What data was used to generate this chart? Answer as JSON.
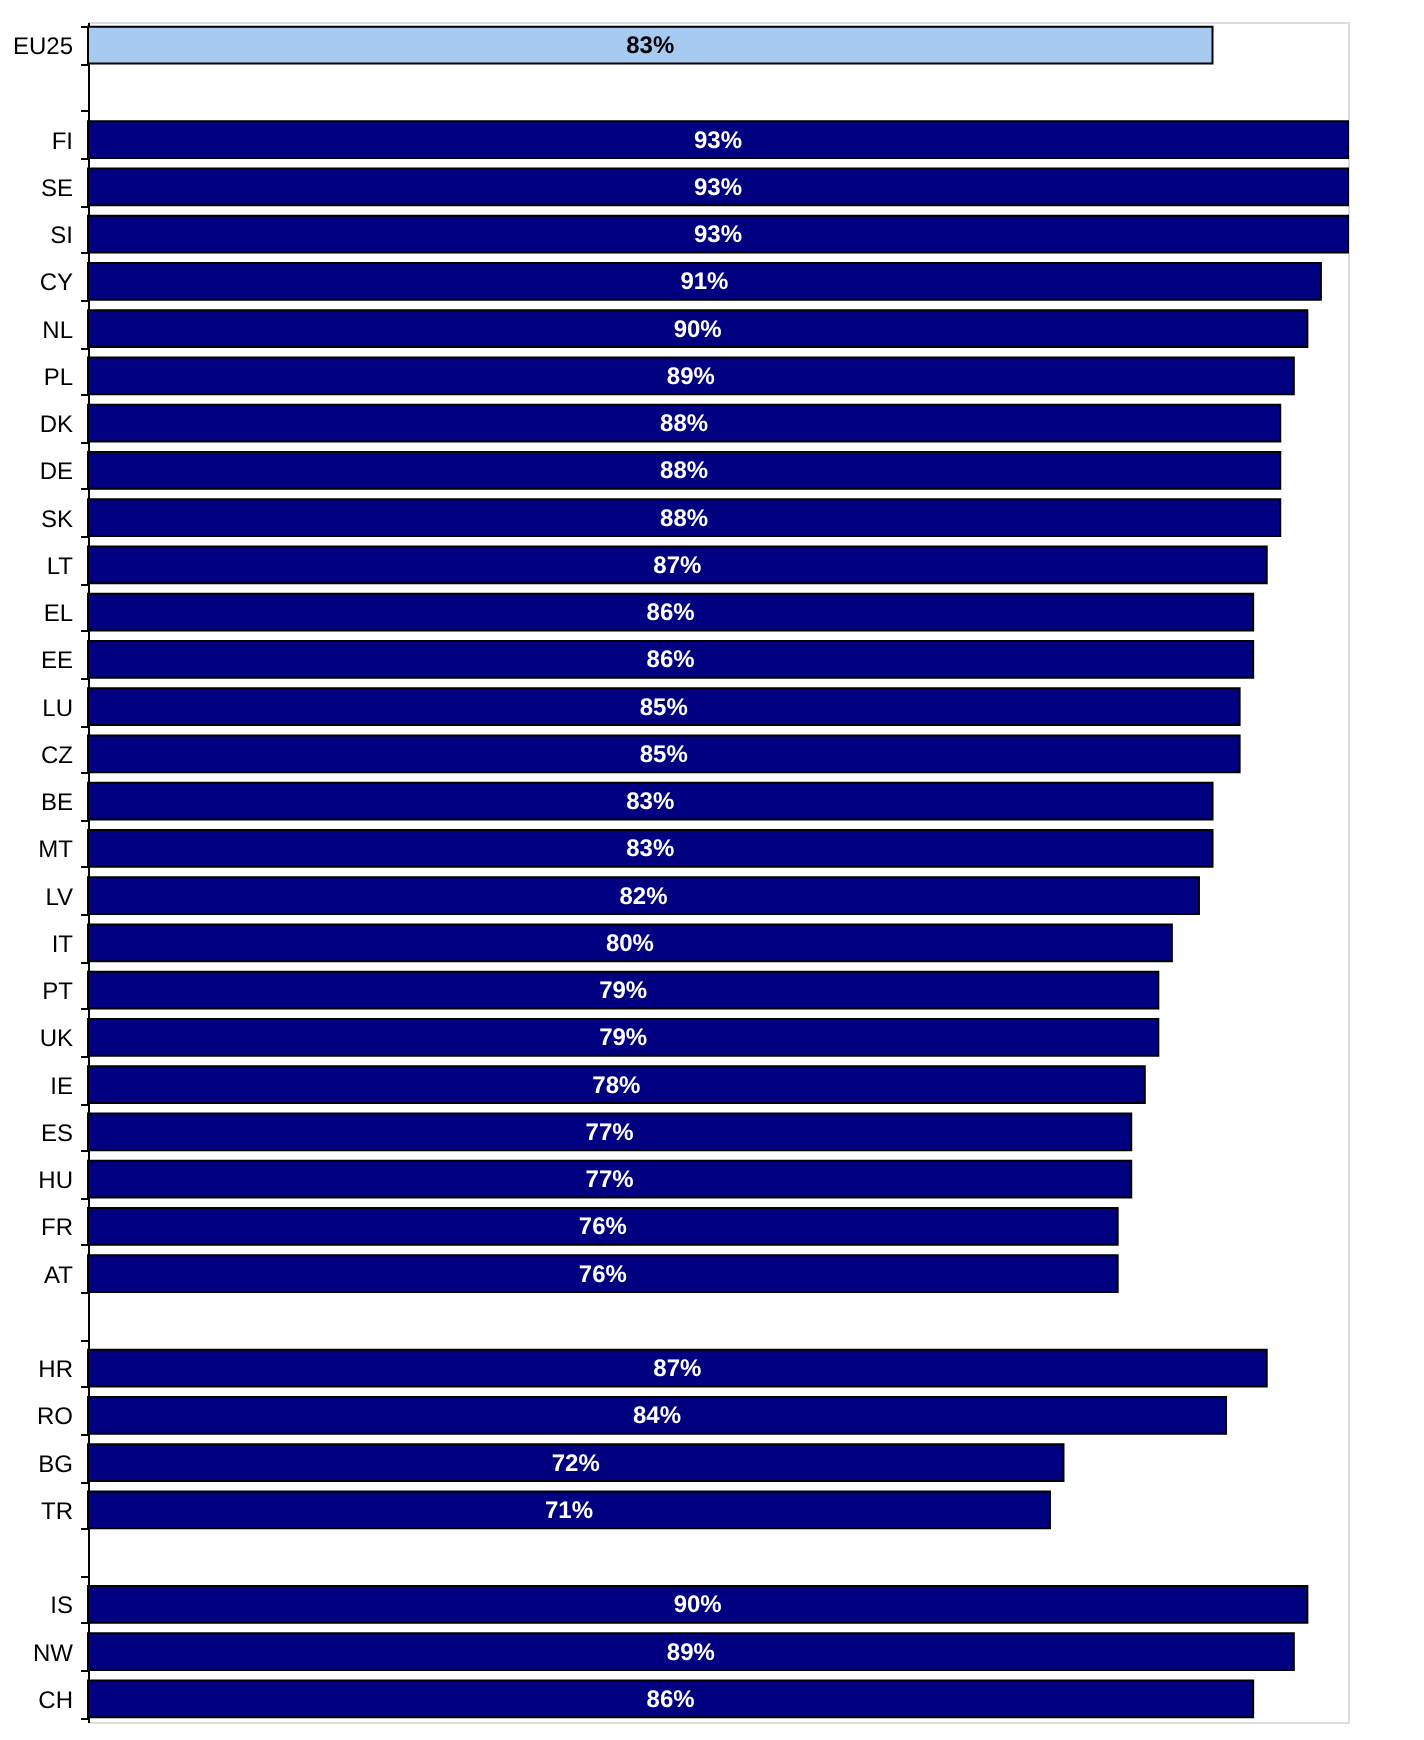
{
  "chart_data": {
    "type": "bar",
    "orientation": "horizontal",
    "categories": [
      "EU25",
      null,
      "FI",
      "SE",
      "SI",
      "CY",
      "NL",
      "PL",
      "DK",
      "DE",
      "SK",
      "LT",
      "EL",
      "EE",
      "LU",
      "CZ",
      "BE",
      "MT",
      "LV",
      "IT",
      "PT",
      "UK",
      "IE",
      "ES",
      "HU",
      "FR",
      "AT",
      null,
      "HR",
      "RO",
      "BG",
      "TR",
      null,
      "IS",
      "NW",
      "CH"
    ],
    "values": [
      83,
      null,
      93,
      93,
      93,
      91,
      90,
      89,
      88,
      88,
      88,
      87,
      86,
      86,
      85,
      85,
      83,
      83,
      82,
      80,
      79,
      79,
      78,
      77,
      77,
      76,
      76,
      null,
      87,
      84,
      72,
      71,
      null,
      90,
      89,
      86
    ],
    "colors": [
      "#a6caf0",
      null,
      "#000080",
      "#000080",
      "#000080",
      "#000080",
      "#000080",
      "#000080",
      "#000080",
      "#000080",
      "#000080",
      "#000080",
      "#000080",
      "#000080",
      "#000080",
      "#000080",
      "#000080",
      "#000080",
      "#000080",
      "#000080",
      "#000080",
      "#000080",
      "#000080",
      "#000080",
      "#000080",
      "#000080",
      "#000080",
      null,
      "#000080",
      "#000080",
      "#000080",
      "#000080",
      null,
      "#000080",
      "#000080",
      "#000080"
    ],
    "value_labels": [
      "83%",
      null,
      "93%",
      "93%",
      "93%",
      "91%",
      "90%",
      "89%",
      "88%",
      "88%",
      "88%",
      "87%",
      "86%",
      "86%",
      "85%",
      "85%",
      "83%",
      "83%",
      "82%",
      "80%",
      "79%",
      "79%",
      "78%",
      "77%",
      "77%",
      "76%",
      "76%",
      null,
      "87%",
      "84%",
      "72%",
      "71%",
      null,
      "90%",
      "89%",
      "86%"
    ],
    "xlim": [
      0,
      93
    ],
    "tick_labels": "y"
  }
}
